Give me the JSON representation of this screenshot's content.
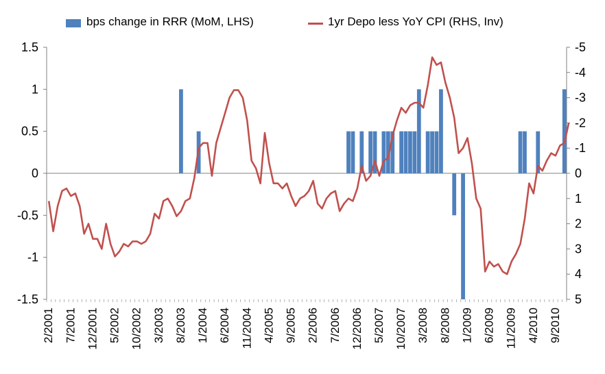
{
  "chart_data": {
    "type": "bar+line",
    "title": "",
    "legend": [
      {
        "name": "bps change in RRR (MoM, LHS)",
        "color": "#4f81bd"
      },
      {
        "name": "1yr Depo less YoY CPI (RHS, Inv)",
        "color": "#c0504d"
      }
    ],
    "legend_position": "top",
    "left_axis": {
      "ylim": [
        -1.5,
        1.5
      ],
      "ticks": [
        "1.5",
        "1",
        "0.5",
        "0",
        "-0.5",
        "-1",
        "-1.5"
      ]
    },
    "right_axis": {
      "ylim": [
        5,
        -5
      ],
      "inverted": true,
      "ticks": [
        "-5",
        "-4",
        "-3",
        "-2",
        "-1",
        "0",
        "1",
        "2",
        "3",
        "4",
        "5"
      ]
    },
    "x_tick_labels": [
      "2/2001",
      "7/2001",
      "12/2001",
      "5/2002",
      "10/2002",
      "3/2003",
      "8/2003",
      "1/2004",
      "6/2004",
      "11/2004",
      "4/2005",
      "9/2005",
      "2/2006",
      "7/2006",
      "12/2006",
      "5/2007",
      "10/2007",
      "3/2008",
      "8/2008",
      "1/2009",
      "6/2009",
      "11/2009",
      "4/2010",
      "9/2010"
    ],
    "x_start": "2/2001",
    "months": 118,
    "bars": [
      {
        "m": 30,
        "v": 1
      },
      {
        "m": 34,
        "v": 0.5
      },
      {
        "m": 68,
        "v": 0.5
      },
      {
        "m": 69,
        "v": 0.5
      },
      {
        "m": 71,
        "v": 0.5
      },
      {
        "m": 73,
        "v": 0.5
      },
      {
        "m": 74,
        "v": 0.5
      },
      {
        "m": 76,
        "v": 0.5
      },
      {
        "m": 77,
        "v": 0.5
      },
      {
        "m": 78,
        "v": 0.5
      },
      {
        "m": 80,
        "v": 0.5
      },
      {
        "m": 81,
        "v": 0.5
      },
      {
        "m": 82,
        "v": 0.5
      },
      {
        "m": 83,
        "v": 0.5
      },
      {
        "m": 84,
        "v": 1
      },
      {
        "m": 86,
        "v": 0.5
      },
      {
        "m": 87,
        "v": 0.5
      },
      {
        "m": 88,
        "v": 0.5
      },
      {
        "m": 89,
        "v": 1
      },
      {
        "m": 92,
        "v": -0.5
      },
      {
        "m": 94,
        "v": -1.5
      },
      {
        "m": 107,
        "v": 0.5
      },
      {
        "m": 108,
        "v": 0.5
      },
      {
        "m": 111,
        "v": 0.5
      },
      {
        "m": 117,
        "v": 1
      }
    ],
    "line": [
      1.1,
      2.3,
      1.3,
      0.7,
      0.6,
      0.9,
      0.8,
      1.3,
      2.4,
      2.0,
      2.6,
      2.6,
      3.0,
      2.0,
      2.8,
      3.3,
      3.1,
      2.8,
      2.9,
      2.7,
      2.7,
      2.8,
      2.7,
      2.4,
      1.6,
      1.8,
      1.1,
      1.0,
      1.3,
      1.7,
      1.5,
      1.1,
      1.0,
      0.2,
      -1.0,
      -1.2,
      -1.2,
      0.1,
      -1.2,
      -1.8,
      -2.4,
      -3.0,
      -3.3,
      -3.3,
      -3.0,
      -2.1,
      -0.5,
      -0.2,
      0.4,
      -1.6,
      -0.4,
      0.4,
      0.4,
      0.6,
      0.4,
      0.9,
      1.3,
      1.0,
      0.9,
      0.7,
      0.3,
      1.2,
      1.4,
      1.0,
      0.8,
      0.7,
      1.5,
      1.2,
      1.0,
      1.1,
      0.6,
      -0.3,
      0.3,
      0.1,
      -0.5,
      0.1,
      -0.5,
      -0.6,
      -1.5,
      -2.1,
      -2.6,
      -2.4,
      -2.7,
      -2.8,
      -2.8,
      -2.6,
      -3.5,
      -4.6,
      -4.3,
      -4.4,
      -3.6,
      -3.0,
      -2.2,
      -0.8,
      -1.0,
      -1.4,
      -0.4,
      1.0,
      1.4,
      3.9,
      3.5,
      3.7,
      3.6,
      3.9,
      4.0,
      3.5,
      3.2,
      2.8,
      1.8,
      0.4,
      0.8,
      -0.3,
      -0.1,
      -0.5,
      -0.8,
      -0.7,
      -1.1,
      -1.2,
      -2.0
    ]
  }
}
